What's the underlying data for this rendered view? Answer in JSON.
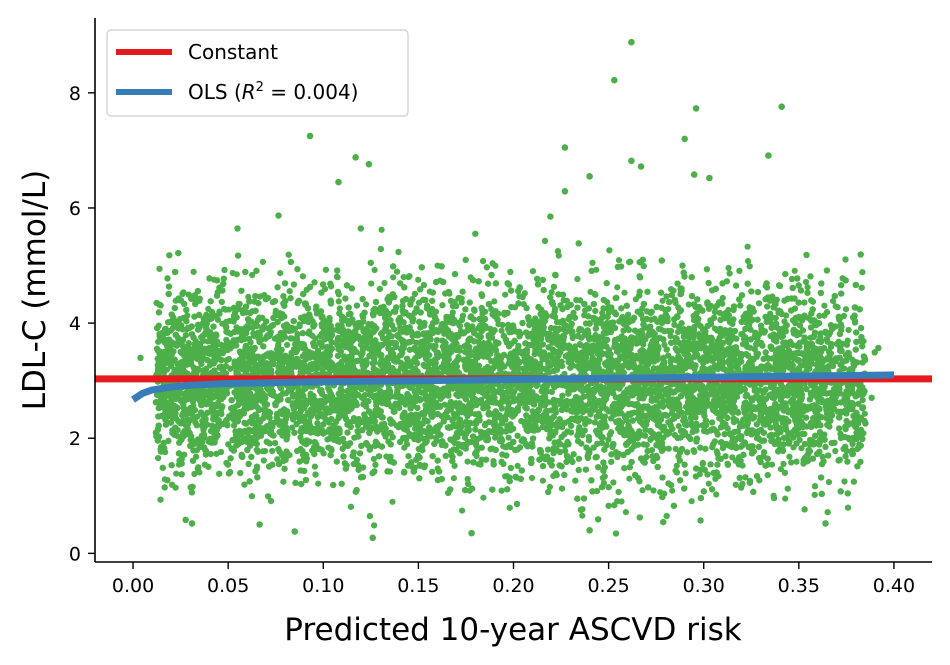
{
  "chart_data": {
    "type": "scatter",
    "xlabel": "Predicted 10-year ASCVD risk",
    "ylabel": "LDL-C (mmol/L)",
    "xlim": [
      -0.02,
      0.42
    ],
    "ylim": [
      -0.15,
      9.3
    ],
    "xticks": [
      0.0,
      0.05,
      0.1,
      0.15,
      0.2,
      0.25,
      0.3,
      0.35,
      0.4
    ],
    "xtick_labels": [
      "0.00",
      "0.05",
      "0.10",
      "0.15",
      "0.20",
      "0.25",
      "0.30",
      "0.35",
      "0.40"
    ],
    "yticks": [
      0,
      2,
      4,
      6,
      8
    ],
    "ytick_labels": [
      "0",
      "2",
      "4",
      "6",
      "8"
    ],
    "grid": false,
    "legend_position": "top-left",
    "scatter": {
      "color": "#4daf4a",
      "x_range": [
        0.0,
        0.4
      ],
      "y_center": 3.0,
      "outliers": [
        {
          "x": 0.262,
          "y": 8.88
        },
        {
          "x": 0.253,
          "y": 8.22
        },
        {
          "x": 0.341,
          "y": 7.76
        },
        {
          "x": 0.296,
          "y": 7.73
        },
        {
          "x": 0.093,
          "y": 7.25
        },
        {
          "x": 0.29,
          "y": 7.2
        },
        {
          "x": 0.227,
          "y": 7.05
        },
        {
          "x": 0.334,
          "y": 6.91
        },
        {
          "x": 0.117,
          "y": 6.88
        },
        {
          "x": 0.262,
          "y": 6.82
        },
        {
          "x": 0.124,
          "y": 6.76
        },
        {
          "x": 0.267,
          "y": 6.72
        },
        {
          "x": 0.295,
          "y": 6.58
        },
        {
          "x": 0.24,
          "y": 6.55
        },
        {
          "x": 0.303,
          "y": 6.52
        },
        {
          "x": 0.108,
          "y": 6.45
        },
        {
          "x": 0.227,
          "y": 6.29
        },
        {
          "x": 0.364,
          "y": 0.52
        },
        {
          "x": 0.126,
          "y": 0.27
        },
        {
          "x": 0.24,
          "y": 0.4
        },
        {
          "x": 0.085,
          "y": 0.38
        },
        {
          "x": 0.178,
          "y": 0.35
        },
        {
          "x": 0.031,
          "y": 0.52
        }
      ]
    },
    "series": [
      {
        "name": "Constant",
        "type": "line",
        "color": "#e41a1c",
        "x": [
          -0.02,
          0.42
        ],
        "y": [
          3.03,
          3.03
        ]
      },
      {
        "name": "OLS ($R^2 = 0.004$)",
        "type": "line",
        "color": "#377eb8",
        "x": [
          0.0,
          0.005,
          0.01,
          0.02,
          0.03,
          0.05,
          0.08,
          0.1,
          0.15,
          0.2,
          0.25,
          0.3,
          0.35,
          0.4
        ],
        "y": [
          2.67,
          2.78,
          2.84,
          2.89,
          2.92,
          2.95,
          2.97,
          2.98,
          3.0,
          3.02,
          3.04,
          3.06,
          3.08,
          3.1
        ]
      }
    ],
    "legend": {
      "constant": "Constant",
      "ols_prefix": "OLS (",
      "ols_r": "R",
      "ols_sup": "2",
      "ols_suffix": " = 0.004)"
    }
  }
}
